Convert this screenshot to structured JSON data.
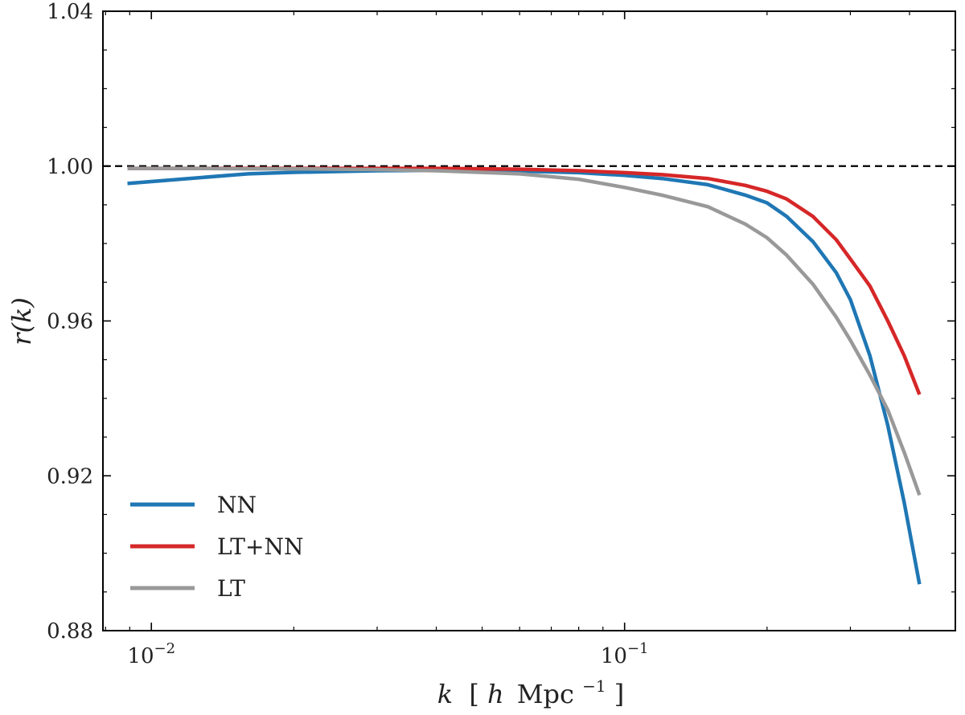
{
  "chart_data": {
    "type": "line",
    "title": "",
    "xlabel": "k [h Mpc⁻¹]",
    "xlabel_parts": {
      "var": "k",
      "open": "[",
      "h": "h",
      "unit": "Mpc",
      "exp": "−1",
      "close": "]"
    },
    "ylabel": "r(k)",
    "xscale": "log",
    "xlim": [
      0.0079,
      0.5
    ],
    "ylim": [
      0.88,
      1.04
    ],
    "yticks": [
      0.88,
      0.92,
      0.96,
      1.0,
      1.04
    ],
    "ytick_labels": [
      "0.88",
      "0.92",
      "0.96",
      "1.00",
      "1.04"
    ],
    "xticks_major": [
      {
        "value": 0.01,
        "base": "10",
        "exp": "−2"
      },
      {
        "value": 0.1,
        "base": "10",
        "exp": "−1"
      }
    ],
    "reference_line": {
      "y": 1.0,
      "style": "dashed",
      "color": "#000000"
    },
    "legend_position": "lower-left",
    "series": [
      {
        "name": "NN",
        "color": "#1f77b4",
        "x": [
          0.0089,
          0.012,
          0.016,
          0.02,
          0.03,
          0.04,
          0.06,
          0.08,
          0.1,
          0.12,
          0.15,
          0.18,
          0.2,
          0.22,
          0.25,
          0.28,
          0.3,
          0.33,
          0.36,
          0.39,
          0.42
        ],
        "y": [
          0.9955,
          0.9968,
          0.998,
          0.9984,
          0.9988,
          0.9989,
          0.9987,
          0.9983,
          0.9976,
          0.9968,
          0.9952,
          0.9925,
          0.9905,
          0.987,
          0.9805,
          0.9725,
          0.9655,
          0.951,
          0.933,
          0.913,
          0.892
        ]
      },
      {
        "name": "LT+NN",
        "color": "#d62728",
        "x": [
          0.0089,
          0.012,
          0.016,
          0.02,
          0.03,
          0.04,
          0.06,
          0.08,
          0.1,
          0.12,
          0.15,
          0.18,
          0.2,
          0.22,
          0.25,
          0.28,
          0.3,
          0.33,
          0.36,
          0.39,
          0.42
        ],
        "y": [
          0.9994,
          0.9994,
          0.9994,
          0.9994,
          0.9994,
          0.9994,
          0.9992,
          0.9988,
          0.9983,
          0.9978,
          0.9968,
          0.995,
          0.9935,
          0.9915,
          0.987,
          0.981,
          0.976,
          0.969,
          0.96,
          0.951,
          0.941
        ]
      },
      {
        "name": "LT",
        "color": "#999999",
        "x": [
          0.0089,
          0.012,
          0.016,
          0.02,
          0.03,
          0.04,
          0.06,
          0.08,
          0.1,
          0.12,
          0.15,
          0.18,
          0.2,
          0.22,
          0.25,
          0.28,
          0.3,
          0.33,
          0.36,
          0.39,
          0.42
        ],
        "y": [
          0.9994,
          0.9994,
          0.9993,
          0.9993,
          0.9991,
          0.9988,
          0.998,
          0.9966,
          0.9945,
          0.9925,
          0.9895,
          0.985,
          0.9815,
          0.977,
          0.9695,
          0.961,
          0.955,
          0.946,
          0.937,
          0.926,
          0.915
        ]
      }
    ]
  }
}
